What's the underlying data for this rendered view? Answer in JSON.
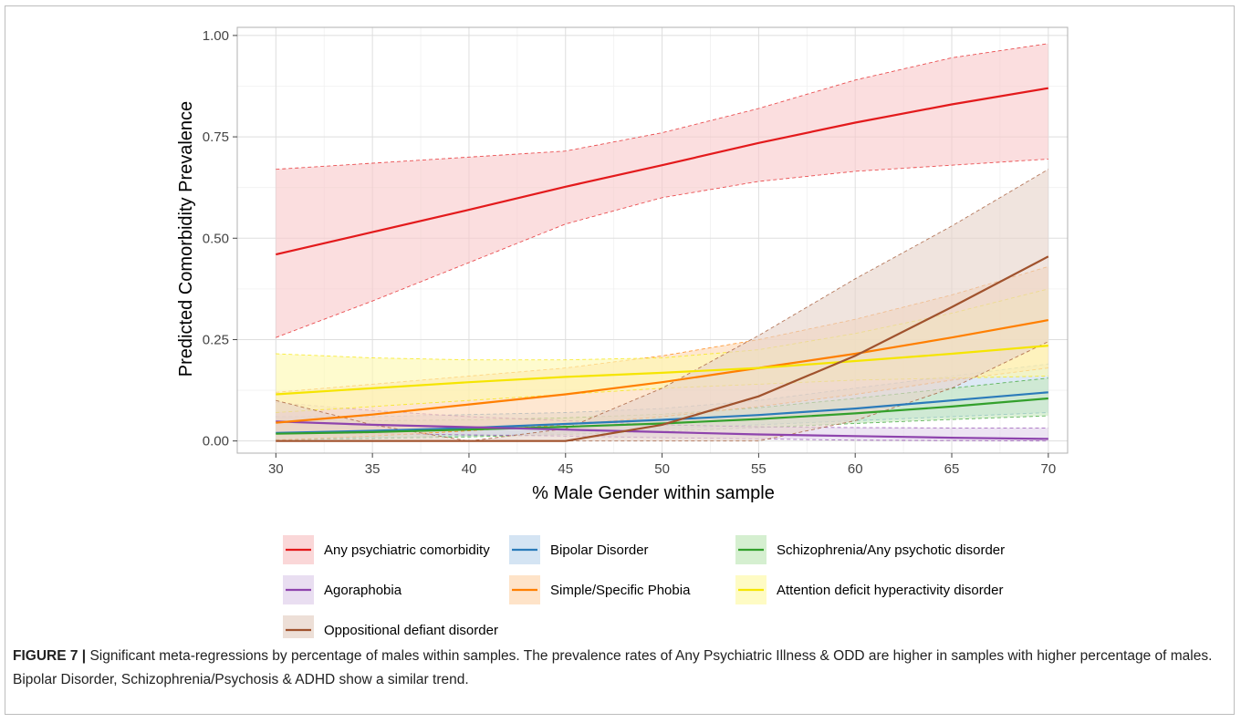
{
  "chart_data": {
    "type": "line",
    "ylabel": "Predicted Comorbidity Prevalence",
    "xlabel": "% Male Gender within sample",
    "xlim": [
      28,
      71
    ],
    "ylim": [
      -0.03,
      1.02
    ],
    "x_ticks": [
      30,
      35,
      40,
      45,
      50,
      55,
      60,
      65,
      70
    ],
    "x_tick_labels": [
      "30",
      "35",
      "40",
      "45",
      "50",
      "55",
      "60",
      "65",
      "70"
    ],
    "y_ticks": [
      0,
      0.25,
      0.5,
      0.75,
      1.0
    ],
    "y_tick_labels": [
      "0.00",
      "0.25",
      "0.50",
      "0.75",
      "1.00"
    ],
    "grid": true,
    "legend_position": "bottom",
    "x": [
      30,
      35,
      40,
      45,
      50,
      55,
      60,
      65,
      70
    ],
    "series": [
      {
        "name": "Any psychiatric comorbidity",
        "color": "#e31a1c",
        "fill": "#f8c9cb",
        "values": [
          0.46,
          0.515,
          0.57,
          0.627,
          0.68,
          0.735,
          0.785,
          0.83,
          0.87
        ],
        "lower": [
          0.255,
          0.345,
          0.44,
          0.535,
          0.6,
          0.64,
          0.665,
          0.68,
          0.695
        ],
        "upper": [
          0.67,
          0.685,
          0.7,
          0.715,
          0.76,
          0.82,
          0.89,
          0.945,
          0.98
        ]
      },
      {
        "name": "Bipolar Disorder",
        "color": "#2b7bba",
        "fill": "#c6dbef",
        "values": [
          0.02,
          0.025,
          0.032,
          0.042,
          0.052,
          0.064,
          0.08,
          0.1,
          0.12
        ],
        "lower": [
          0.005,
          0.008,
          0.013,
          0.02,
          0.03,
          0.04,
          0.05,
          0.06,
          0.07
        ],
        "upper": [
          0.06,
          0.06,
          0.065,
          0.07,
          0.08,
          0.1,
          0.13,
          0.16,
          0.19
        ]
      },
      {
        "name": "Schizophrenia/Any psychotic disorder",
        "color": "#33a02c",
        "fill": "#c7e9c0",
        "values": [
          0.018,
          0.022,
          0.028,
          0.035,
          0.043,
          0.054,
          0.068,
          0.085,
          0.105
        ],
        "lower": [
          0.003,
          0.006,
          0.01,
          0.016,
          0.024,
          0.033,
          0.043,
          0.053,
          0.062
        ],
        "upper": [
          0.05,
          0.05,
          0.052,
          0.057,
          0.066,
          0.082,
          0.105,
          0.13,
          0.155
        ]
      },
      {
        "name": "Agoraphobia",
        "color": "#8e44ad",
        "fill": "#e2d3ec",
        "values": [
          0.048,
          0.04,
          0.034,
          0.028,
          0.022,
          0.016,
          0.012,
          0.008,
          0.005
        ],
        "lower": [
          0.02,
          0.018,
          0.015,
          0.012,
          0.008,
          0.005,
          0.002,
          0.001,
          0.0
        ],
        "upper": [
          0.095,
          0.075,
          0.06,
          0.05,
          0.04,
          0.035,
          0.033,
          0.032,
          0.032
        ]
      },
      {
        "name": "Simple/Specific Phobia",
        "color": "#ff7f00",
        "fill": "#fdd9b5",
        "values": [
          0.045,
          0.065,
          0.09,
          0.115,
          0.145,
          0.18,
          0.215,
          0.255,
          0.298
        ],
        "lower": [
          0.002,
          0.012,
          0.025,
          0.04,
          0.06,
          0.085,
          0.115,
          0.15,
          0.18
        ],
        "upper": [
          0.12,
          0.14,
          0.16,
          0.18,
          0.21,
          0.25,
          0.3,
          0.36,
          0.43
        ]
      },
      {
        "name": "Attention deficit hyperactivity disorder",
        "color": "#f5e500",
        "fill": "#fdf9b0",
        "values": [
          0.115,
          0.13,
          0.145,
          0.158,
          0.168,
          0.18,
          0.197,
          0.215,
          0.235
        ],
        "lower": [
          0.07,
          0.085,
          0.1,
          0.115,
          0.13,
          0.14,
          0.15,
          0.155,
          0.16
        ],
        "upper": [
          0.215,
          0.205,
          0.2,
          0.2,
          0.205,
          0.225,
          0.265,
          0.315,
          0.375
        ]
      },
      {
        "name": "Oppositional defiant disorder",
        "color": "#a0522d",
        "fill": "#e7d4c9",
        "values": [
          0.0,
          0.0,
          0.0,
          0.0,
          0.04,
          0.11,
          0.21,
          0.33,
          0.455
        ],
        "lower": [
          0.0,
          0.0,
          0.0,
          0.0,
          0.0,
          0.0,
          0.05,
          0.13,
          0.245
        ],
        "upper": [
          0.1,
          0.04,
          0.0,
          0.03,
          0.13,
          0.26,
          0.4,
          0.53,
          0.67
        ]
      }
    ]
  },
  "caption": {
    "label": "FIGURE 7 |",
    "text": " Significant meta-regressions by percentage of males within samples. The prevalence rates of Any Psychiatric Illness & ODD are higher in samples with higher percentage of males. Bipolar Disorder, Schizophrenia/Psychosis & ADHD show a similar trend."
  }
}
